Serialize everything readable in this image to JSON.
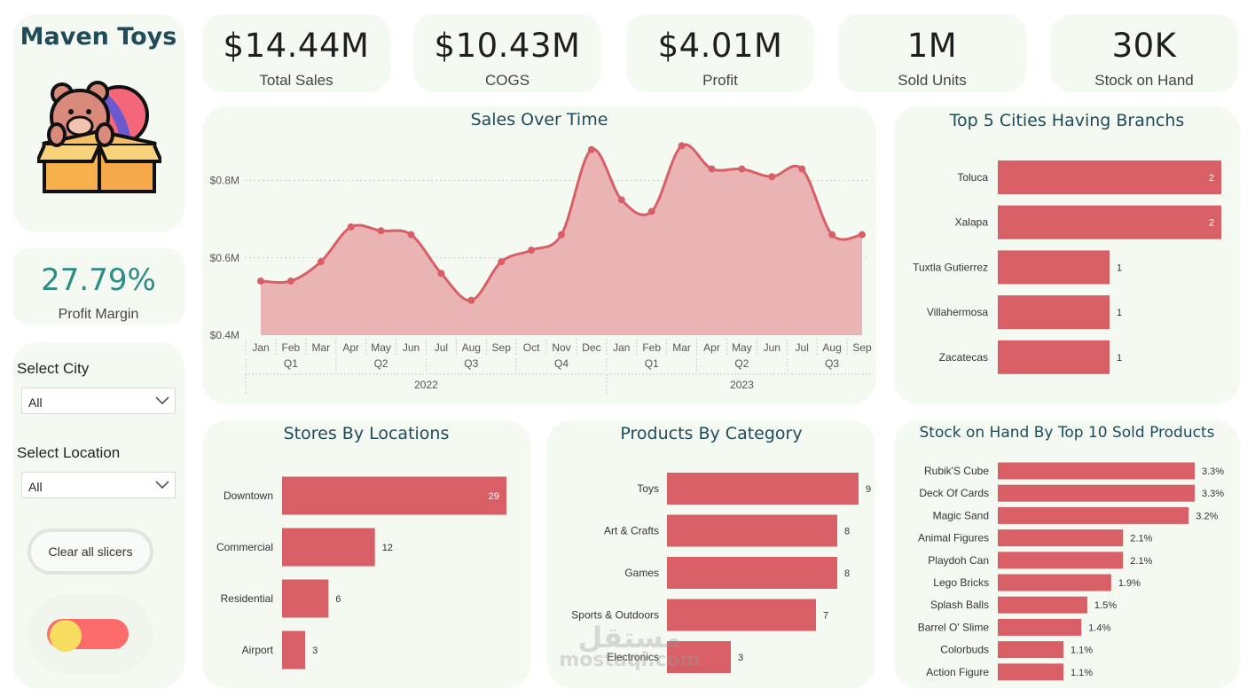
{
  "brand": {
    "title": "Maven Toys"
  },
  "kpis": [
    {
      "value": "$14.44M",
      "label": "Total Sales"
    },
    {
      "value": "$10.43M",
      "label": "COGS"
    },
    {
      "value": "$4.01M",
      "label": "Profit"
    },
    {
      "value": "1M",
      "label": "Sold Units"
    },
    {
      "value": "30K",
      "label": "Stock on Hand"
    }
  ],
  "margin": {
    "value": "27.79%",
    "label": "Profit Margin"
  },
  "slicers": {
    "city_label": "Select City",
    "city_value": "All",
    "location_label": "Select Location",
    "location_value": "All",
    "clear_label": "Clear all slicers"
  },
  "watermark": {
    "arabic": "مستقل",
    "latin": "mostaqi.com"
  },
  "colors": {
    "accent": "#d95f66",
    "area": "#ebb4b4",
    "card": "#f4faf2",
    "title": "#1f4b5a",
    "margin": "#2a8c82"
  },
  "chart_data": [
    {
      "type": "area",
      "title": "Sales Over Time",
      "x": [
        "Jan",
        "Feb",
        "Mar",
        "Apr",
        "May",
        "Jun",
        "Jul",
        "Aug",
        "Sep",
        "Oct",
        "Nov",
        "Dec",
        "Jan",
        "Feb",
        "Mar",
        "Apr",
        "May",
        "Jun",
        "Jul",
        "Aug",
        "Sep"
      ],
      "quarters": [
        "Q1",
        "Q2",
        "Q3",
        "Q4",
        "Q1",
        "Q2",
        "Q3"
      ],
      "years": [
        "2022",
        "2023"
      ],
      "values": [
        0.54,
        0.54,
        0.59,
        0.68,
        0.67,
        0.66,
        0.56,
        0.49,
        0.59,
        0.62,
        0.66,
        0.88,
        0.75,
        0.72,
        0.89,
        0.83,
        0.83,
        0.81,
        0.83,
        0.66,
        0.66
      ],
      "yticks": [
        "$0.4M",
        "$0.6M",
        "$0.8M"
      ],
      "ylim": [
        0.4,
        0.9
      ],
      "grid": true
    },
    {
      "type": "bar",
      "title": "Top 5 Cities Having Branchs",
      "categories": [
        "Toluca",
        "Xalapa",
        "Tuxtla Gutierrez",
        "Villahermosa",
        "Zacatecas"
      ],
      "values": [
        2,
        2,
        1,
        1,
        1
      ],
      "labels": [
        "2",
        "2",
        "1",
        "1",
        "1"
      ]
    },
    {
      "type": "bar",
      "title": "Stores By Locations",
      "categories": [
        "Downtown",
        "Commercial",
        "Residential",
        "Airport"
      ],
      "values": [
        29,
        12,
        6,
        3
      ],
      "labels": [
        "29",
        "12",
        "6",
        "3"
      ]
    },
    {
      "type": "bar",
      "title": "Products By Category",
      "categories": [
        "Toys",
        "Art & Crafts",
        "Games",
        "Sports & Outdoors",
        "Electronics"
      ],
      "values": [
        9,
        8,
        8,
        7,
        3
      ],
      "labels": [
        "9",
        "8",
        "8",
        "7",
        "3"
      ]
    },
    {
      "type": "bar",
      "title": "Stock on Hand By Top 10 Sold Products",
      "categories": [
        "Rubik'S Cube",
        "Deck Of Cards",
        "Magic Sand",
        "Animal Figures",
        "Playdoh Can",
        "Lego Bricks",
        "Splash Balls",
        "Barrel O' Slime",
        "Colorbuds",
        "Action Figure"
      ],
      "values": [
        3.3,
        3.3,
        3.2,
        2.1,
        2.1,
        1.9,
        1.5,
        1.4,
        1.1,
        1.1
      ],
      "labels": [
        "3.3%",
        "3.3%",
        "3.2%",
        "2.1%",
        "2.1%",
        "1.9%",
        "1.5%",
        "1.4%",
        "1.1%",
        "1.1%"
      ]
    }
  ]
}
